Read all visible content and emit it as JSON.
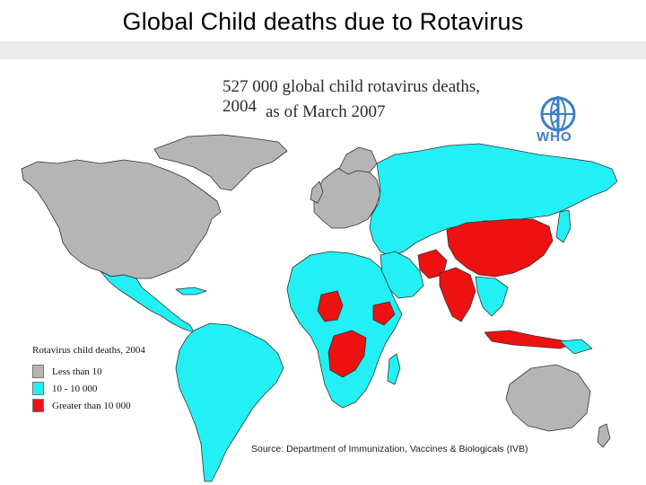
{
  "slide": {
    "title": "Global  Child deaths due to Rotavirus"
  },
  "map": {
    "title": "527 000 global child rotavirus deaths, 2004",
    "subtitle": "as of March 2007",
    "logo_text": "WHO",
    "source": "Source: Department of Immunization, Vaccines & Biologicals (IVB)"
  },
  "legend": {
    "title": "Rotavirus child deaths, 2004",
    "items": [
      {
        "label": "Less than 10",
        "color": "#b5b5b5"
      },
      {
        "label": "10 - 10 000",
        "color": "#22f0f4"
      },
      {
        "label": "Greater than 10 000",
        "color": "#ee1111"
      }
    ]
  },
  "colors": {
    "title_band": "#e9ecef",
    "low": "#b5b5b5",
    "medium": "#22f0f4",
    "high": "#ee1111",
    "border": "#333333"
  }
}
